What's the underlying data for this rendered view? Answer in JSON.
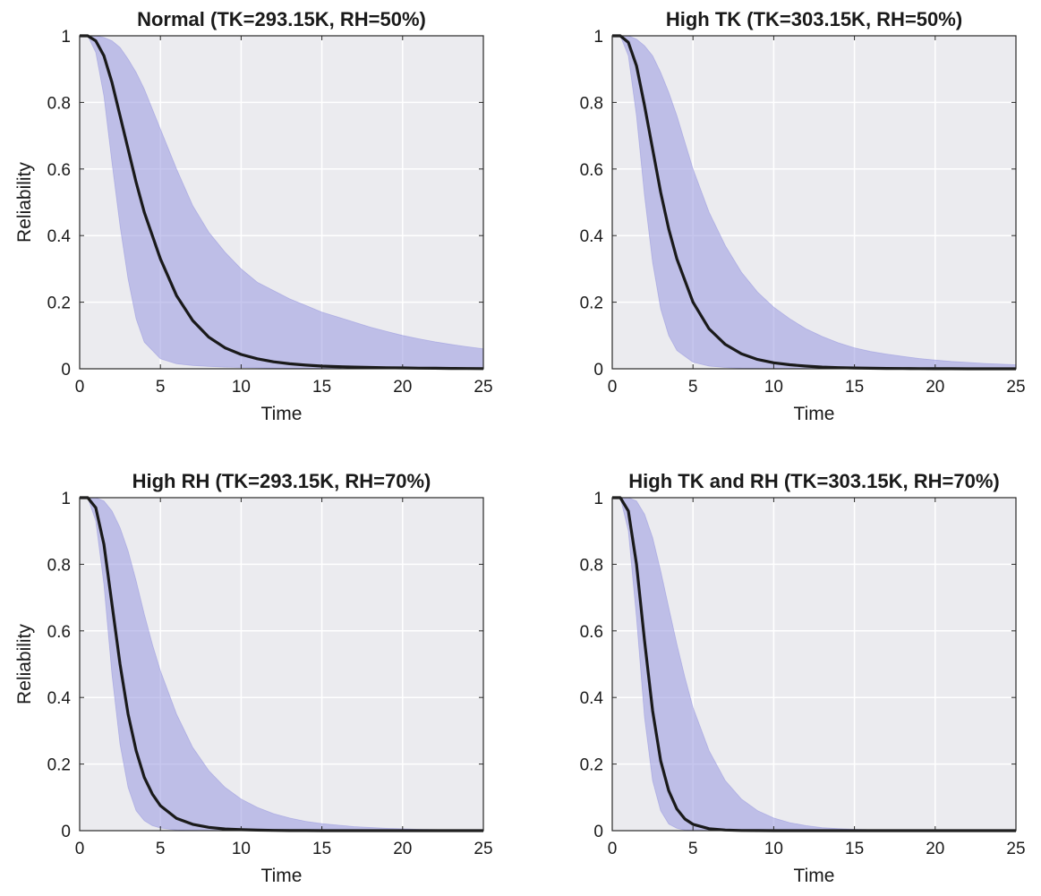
{
  "chart_data": [
    {
      "type": "area",
      "title": "Normal (TK=293.15K, RH=50%)",
      "xlabel": "Time",
      "ylabel": "Reliability",
      "xlim": [
        0,
        25
      ],
      "ylim": [
        0,
        1
      ],
      "xticks": [
        0,
        5,
        10,
        15,
        20,
        25
      ],
      "yticks": [
        0,
        0.2,
        0.4,
        0.6,
        0.8,
        1
      ],
      "grid": true,
      "colors": {
        "band": "#9999e0",
        "mean": "#1a1a1a",
        "background": "#ebebef"
      },
      "x": [
        0,
        0.5,
        1,
        1.5,
        2,
        2.5,
        3,
        3.5,
        4,
        5,
        6,
        7,
        8,
        9,
        10,
        11,
        12,
        13,
        14,
        15,
        16,
        17,
        18,
        19,
        20,
        21,
        22,
        23,
        24,
        25
      ],
      "mean": [
        1,
        1,
        0.985,
        0.94,
        0.86,
        0.76,
        0.66,
        0.56,
        0.47,
        0.33,
        0.22,
        0.145,
        0.095,
        0.063,
        0.043,
        0.03,
        0.021,
        0.015,
        0.011,
        0.008,
        0.0065,
        0.005,
        0.004,
        0.0032,
        0.0026,
        0.002,
        0.0015,
        0.001,
        0.0007,
        0.0005
      ],
      "lower": [
        1,
        1,
        0.95,
        0.82,
        0.62,
        0.43,
        0.27,
        0.15,
        0.08,
        0.03,
        0.015,
        0.01,
        0.007,
        0.005,
        0.004,
        0.003,
        0.002,
        0.0015,
        0.001,
        0.001,
        0.0008,
        0.0006,
        0.0005,
        0.0004,
        0.0003,
        0.0002,
        0.0002,
        0.0001,
        0.0001,
        0
      ],
      "upper": [
        1,
        1,
        1,
        0.995,
        0.985,
        0.965,
        0.93,
        0.89,
        0.84,
        0.72,
        0.6,
        0.49,
        0.41,
        0.35,
        0.3,
        0.26,
        0.235,
        0.21,
        0.19,
        0.17,
        0.155,
        0.14,
        0.125,
        0.112,
        0.1,
        0.09,
        0.081,
        0.073,
        0.066,
        0.06
      ]
    },
    {
      "type": "area",
      "title": "High TK (TK=303.15K, RH=50%)",
      "xlabel": "Time",
      "ylabel": "",
      "xlim": [
        0,
        25
      ],
      "ylim": [
        0,
        1
      ],
      "xticks": [
        0,
        5,
        10,
        15,
        20,
        25
      ],
      "yticks": [
        0,
        0.2,
        0.4,
        0.6,
        0.8,
        1
      ],
      "grid": true,
      "colors": {
        "band": "#9999e0",
        "mean": "#1a1a1a",
        "background": "#ebebef"
      },
      "x": [
        0,
        0.5,
        1,
        1.5,
        2,
        2.5,
        3,
        3.5,
        4,
        5,
        6,
        7,
        8,
        9,
        10,
        11,
        12,
        13,
        14,
        15,
        16,
        17,
        18,
        19,
        20,
        21,
        22,
        23,
        24,
        25
      ],
      "mean": [
        1,
        1,
        0.98,
        0.91,
        0.79,
        0.66,
        0.53,
        0.42,
        0.33,
        0.2,
        0.12,
        0.073,
        0.045,
        0.028,
        0.018,
        0.012,
        0.008,
        0.005,
        0.0035,
        0.0025,
        0.0017,
        0.0012,
        0.0008,
        0.0005,
        0.0003,
        0.0002,
        0.0001,
        0.0001,
        0,
        0
      ],
      "lower": [
        1,
        1,
        0.94,
        0.76,
        0.52,
        0.32,
        0.18,
        0.1,
        0.055,
        0.02,
        0.008,
        0.004,
        0.002,
        0.001,
        0.0005,
        0.0003,
        0.0002,
        0.0001,
        0,
        0,
        0,
        0,
        0,
        0,
        0,
        0,
        0,
        0,
        0,
        0
      ],
      "upper": [
        1,
        1,
        1,
        0.99,
        0.97,
        0.94,
        0.89,
        0.83,
        0.76,
        0.6,
        0.47,
        0.37,
        0.29,
        0.23,
        0.185,
        0.15,
        0.12,
        0.097,
        0.078,
        0.063,
        0.052,
        0.044,
        0.037,
        0.031,
        0.026,
        0.022,
        0.019,
        0.016,
        0.014,
        0.012
      ]
    },
    {
      "type": "area",
      "title": "High RH (TK=293.15K, RH=70%)",
      "xlabel": "Time",
      "ylabel": "Reliability",
      "xlim": [
        0,
        25
      ],
      "ylim": [
        0,
        1
      ],
      "xticks": [
        0,
        5,
        10,
        15,
        20,
        25
      ],
      "yticks": [
        0,
        0.2,
        0.4,
        0.6,
        0.8,
        1
      ],
      "grid": true,
      "colors": {
        "band": "#9999e0",
        "mean": "#1a1a1a",
        "background": "#ebebef"
      },
      "x": [
        0,
        0.5,
        1,
        1.5,
        2,
        2.5,
        3,
        3.5,
        4,
        4.5,
        5,
        6,
        7,
        8,
        9,
        10,
        11,
        12,
        13,
        14,
        15,
        17,
        19,
        21,
        23,
        25
      ],
      "mean": [
        1,
        1,
        0.97,
        0.86,
        0.68,
        0.5,
        0.35,
        0.24,
        0.16,
        0.11,
        0.075,
        0.037,
        0.019,
        0.01,
        0.005,
        0.003,
        0.0015,
        0.0008,
        0.0004,
        0.0002,
        0.0001,
        0,
        0,
        0,
        0,
        0
      ],
      "lower": [
        1,
        1,
        0.93,
        0.74,
        0.47,
        0.26,
        0.13,
        0.06,
        0.03,
        0.015,
        0.008,
        0.002,
        0.0005,
        0.0001,
        0,
        0,
        0,
        0,
        0,
        0,
        0,
        0,
        0,
        0,
        0,
        0
      ],
      "upper": [
        1,
        1,
        1,
        0.99,
        0.96,
        0.91,
        0.84,
        0.75,
        0.65,
        0.56,
        0.48,
        0.35,
        0.25,
        0.18,
        0.13,
        0.095,
        0.07,
        0.051,
        0.038,
        0.028,
        0.021,
        0.012,
        0.007,
        0.004,
        0.0025,
        0.0015
      ]
    },
    {
      "type": "area",
      "title": "High TK and RH (TK=303.15K, RH=70%)",
      "xlabel": "Time",
      "ylabel": "",
      "xlim": [
        0,
        25
      ],
      "ylim": [
        0,
        1
      ],
      "xticks": [
        0,
        5,
        10,
        15,
        20,
        25
      ],
      "yticks": [
        0,
        0.2,
        0.4,
        0.6,
        0.8,
        1
      ],
      "grid": true,
      "colors": {
        "band": "#9999e0",
        "mean": "#1a1a1a",
        "background": "#ebebef"
      },
      "x": [
        0,
        0.5,
        1,
        1.5,
        2,
        2.5,
        3,
        3.5,
        4,
        4.5,
        5,
        6,
        7,
        8,
        9,
        10,
        11,
        12,
        13,
        14,
        15,
        17,
        19,
        21,
        23,
        25
      ],
      "mean": [
        1,
        1,
        0.96,
        0.8,
        0.57,
        0.36,
        0.21,
        0.12,
        0.065,
        0.035,
        0.019,
        0.006,
        0.002,
        0.0006,
        0.0002,
        0,
        0,
        0,
        0,
        0,
        0,
        0,
        0,
        0,
        0,
        0
      ],
      "lower": [
        1,
        1,
        0.9,
        0.64,
        0.34,
        0.15,
        0.06,
        0.02,
        0.007,
        0.002,
        0.0006,
        0,
        0,
        0,
        0,
        0,
        0,
        0,
        0,
        0,
        0,
        0,
        0,
        0,
        0,
        0
      ],
      "upper": [
        1,
        1,
        1,
        0.99,
        0.95,
        0.88,
        0.78,
        0.67,
        0.56,
        0.46,
        0.37,
        0.24,
        0.15,
        0.095,
        0.06,
        0.038,
        0.024,
        0.015,
        0.009,
        0.006,
        0.004,
        0.0015,
        0.0006,
        0.0002,
        0.0001,
        0
      ]
    }
  ]
}
